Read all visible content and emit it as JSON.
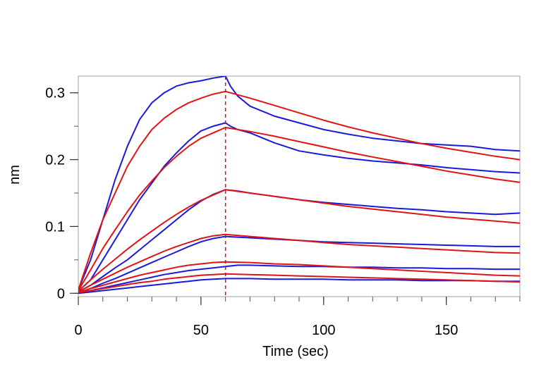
{
  "chart_data": {
    "type": "line",
    "xlabel": "Time (sec)",
    "ylabel": "nm",
    "xlim": [
      0,
      180
    ],
    "ylim": [
      -0.005,
      0.325
    ],
    "xticks": [
      0,
      50,
      100,
      150
    ],
    "yticks": [
      0,
      0.1,
      0.2,
      0.3
    ],
    "ytick_labels": [
      "0",
      "0.1",
      "0.2",
      "0.3"
    ],
    "grid": false,
    "annotations": [
      {
        "type": "vertical-dashed-line",
        "x": 60,
        "color": "#d01010"
      }
    ],
    "colors": {
      "measured": "#1a1adc",
      "fit": "#e01414"
    },
    "series": [
      {
        "kind": "measured",
        "x": [
          0,
          5,
          10,
          15,
          20,
          25,
          30,
          35,
          40,
          45,
          50,
          55,
          60,
          62,
          65,
          70,
          80,
          90,
          100,
          110,
          120,
          130,
          140,
          150,
          160,
          170,
          180
        ],
        "y": [
          0.005,
          0.05,
          0.11,
          0.17,
          0.22,
          0.26,
          0.285,
          0.3,
          0.31,
          0.315,
          0.318,
          0.322,
          0.325,
          0.31,
          0.295,
          0.28,
          0.265,
          0.255,
          0.245,
          0.238,
          0.232,
          0.228,
          0.224,
          0.222,
          0.22,
          0.215,
          0.213
        ]
      },
      {
        "kind": "fit",
        "x": [
          0,
          5,
          10,
          15,
          20,
          25,
          30,
          35,
          40,
          45,
          50,
          55,
          60,
          70,
          80,
          90,
          100,
          110,
          120,
          130,
          140,
          150,
          160,
          170,
          180
        ],
        "y": [
          0.005,
          0.06,
          0.11,
          0.15,
          0.19,
          0.22,
          0.245,
          0.262,
          0.275,
          0.285,
          0.292,
          0.298,
          0.302,
          0.292,
          0.281,
          0.27,
          0.259,
          0.249,
          0.24,
          0.232,
          0.224,
          0.217,
          0.211,
          0.205,
          0.2
        ]
      },
      {
        "kind": "measured",
        "x": [
          0,
          5,
          10,
          15,
          20,
          25,
          30,
          35,
          40,
          45,
          50,
          55,
          60,
          62,
          65,
          70,
          80,
          90,
          100,
          110,
          120,
          130,
          140,
          150,
          160,
          170,
          180
        ],
        "y": [
          0.003,
          0.02,
          0.05,
          0.08,
          0.11,
          0.14,
          0.165,
          0.19,
          0.21,
          0.228,
          0.243,
          0.25,
          0.255,
          0.25,
          0.245,
          0.24,
          0.225,
          0.213,
          0.207,
          0.202,
          0.198,
          0.195,
          0.192,
          0.188,
          0.185,
          0.182,
          0.18
        ]
      },
      {
        "kind": "fit",
        "x": [
          0,
          5,
          10,
          15,
          20,
          25,
          30,
          35,
          40,
          45,
          50,
          55,
          60,
          70,
          80,
          90,
          100,
          110,
          120,
          130,
          140,
          150,
          160,
          170,
          180
        ],
        "y": [
          0.004,
          0.035,
          0.067,
          0.095,
          0.122,
          0.147,
          0.168,
          0.188,
          0.205,
          0.22,
          0.232,
          0.24,
          0.248,
          0.242,
          0.235,
          0.227,
          0.219,
          0.211,
          0.204,
          0.197,
          0.19,
          0.183,
          0.177,
          0.171,
          0.166
        ]
      },
      {
        "kind": "measured",
        "x": [
          0,
          5,
          10,
          15,
          20,
          25,
          30,
          35,
          40,
          45,
          50,
          55,
          60,
          65,
          70,
          80,
          90,
          100,
          110,
          120,
          130,
          140,
          150,
          160,
          170,
          180
        ],
        "y": [
          0.002,
          0.012,
          0.025,
          0.038,
          0.05,
          0.065,
          0.08,
          0.095,
          0.11,
          0.125,
          0.138,
          0.148,
          0.155,
          0.153,
          0.15,
          0.145,
          0.14,
          0.136,
          0.133,
          0.13,
          0.127,
          0.125,
          0.122,
          0.12,
          0.118,
          0.12
        ]
      },
      {
        "kind": "fit",
        "x": [
          0,
          5,
          10,
          15,
          20,
          25,
          30,
          35,
          40,
          45,
          50,
          55,
          60,
          70,
          80,
          90,
          100,
          110,
          120,
          130,
          140,
          150,
          160,
          170,
          180
        ],
        "y": [
          0.003,
          0.02,
          0.036,
          0.051,
          0.066,
          0.08,
          0.093,
          0.106,
          0.118,
          0.129,
          0.139,
          0.147,
          0.155,
          0.15,
          0.145,
          0.14,
          0.135,
          0.13,
          0.126,
          0.122,
          0.118,
          0.114,
          0.111,
          0.108,
          0.105
        ]
      },
      {
        "kind": "measured",
        "x": [
          0,
          5,
          10,
          15,
          20,
          25,
          30,
          35,
          40,
          45,
          50,
          55,
          60,
          65,
          70,
          80,
          90,
          100,
          110,
          120,
          130,
          140,
          150,
          160,
          170,
          180
        ],
        "y": [
          0.001,
          0.007,
          0.015,
          0.022,
          0.03,
          0.038,
          0.046,
          0.054,
          0.062,
          0.07,
          0.077,
          0.082,
          0.085,
          0.084,
          0.083,
          0.081,
          0.079,
          0.077,
          0.076,
          0.075,
          0.074,
          0.073,
          0.072,
          0.071,
          0.07,
          0.07
        ]
      },
      {
        "kind": "fit",
        "x": [
          0,
          5,
          10,
          15,
          20,
          25,
          30,
          35,
          40,
          45,
          50,
          55,
          60,
          70,
          80,
          90,
          100,
          110,
          120,
          130,
          140,
          150,
          160,
          170,
          180
        ],
        "y": [
          0.002,
          0.012,
          0.021,
          0.03,
          0.039,
          0.047,
          0.055,
          0.063,
          0.07,
          0.076,
          0.082,
          0.086,
          0.088,
          0.085,
          0.082,
          0.079,
          0.076,
          0.073,
          0.071,
          0.069,
          0.067,
          0.065,
          0.063,
          0.061,
          0.06
        ]
      },
      {
        "kind": "measured",
        "x": [
          0,
          5,
          10,
          15,
          20,
          25,
          30,
          35,
          40,
          45,
          50,
          55,
          60,
          65,
          70,
          80,
          90,
          100,
          110,
          120,
          130,
          140,
          150,
          160,
          170,
          180
        ],
        "y": [
          0.001,
          0.004,
          0.008,
          0.012,
          0.016,
          0.02,
          0.024,
          0.028,
          0.031,
          0.034,
          0.036,
          0.038,
          0.04,
          0.042,
          0.042,
          0.041,
          0.04,
          0.04,
          0.039,
          0.039,
          0.038,
          0.038,
          0.037,
          0.037,
          0.036,
          0.036
        ]
      },
      {
        "kind": "fit",
        "x": [
          0,
          5,
          10,
          15,
          20,
          25,
          30,
          35,
          40,
          45,
          50,
          55,
          60,
          70,
          80,
          90,
          100,
          110,
          120,
          130,
          140,
          150,
          160,
          170,
          180
        ],
        "y": [
          0.001,
          0.007,
          0.012,
          0.017,
          0.022,
          0.027,
          0.031,
          0.035,
          0.039,
          0.042,
          0.044,
          0.046,
          0.047,
          0.046,
          0.044,
          0.043,
          0.041,
          0.039,
          0.037,
          0.035,
          0.033,
          0.031,
          0.029,
          0.027,
          0.026
        ]
      },
      {
        "kind": "measured",
        "x": [
          0,
          5,
          10,
          15,
          20,
          25,
          30,
          35,
          40,
          45,
          50,
          55,
          60,
          65,
          70,
          80,
          90,
          100,
          110,
          120,
          130,
          140,
          150,
          160,
          170,
          180
        ],
        "y": [
          0.0,
          0.002,
          0.004,
          0.006,
          0.008,
          0.01,
          0.012,
          0.014,
          0.016,
          0.018,
          0.02,
          0.021,
          0.022,
          0.022,
          0.022,
          0.021,
          0.021,
          0.021,
          0.02,
          0.02,
          0.02,
          0.019,
          0.019,
          0.019,
          0.018,
          0.018
        ]
      },
      {
        "kind": "fit",
        "x": [
          0,
          5,
          10,
          15,
          20,
          25,
          30,
          35,
          40,
          45,
          50,
          55,
          60,
          70,
          80,
          90,
          100,
          110,
          120,
          130,
          140,
          150,
          160,
          170,
          180
        ],
        "y": [
          0.001,
          0.004,
          0.007,
          0.01,
          0.013,
          0.016,
          0.018,
          0.021,
          0.023,
          0.025,
          0.027,
          0.028,
          0.029,
          0.028,
          0.027,
          0.026,
          0.025,
          0.024,
          0.023,
          0.022,
          0.021,
          0.02,
          0.019,
          0.018,
          0.017
        ]
      }
    ]
  }
}
